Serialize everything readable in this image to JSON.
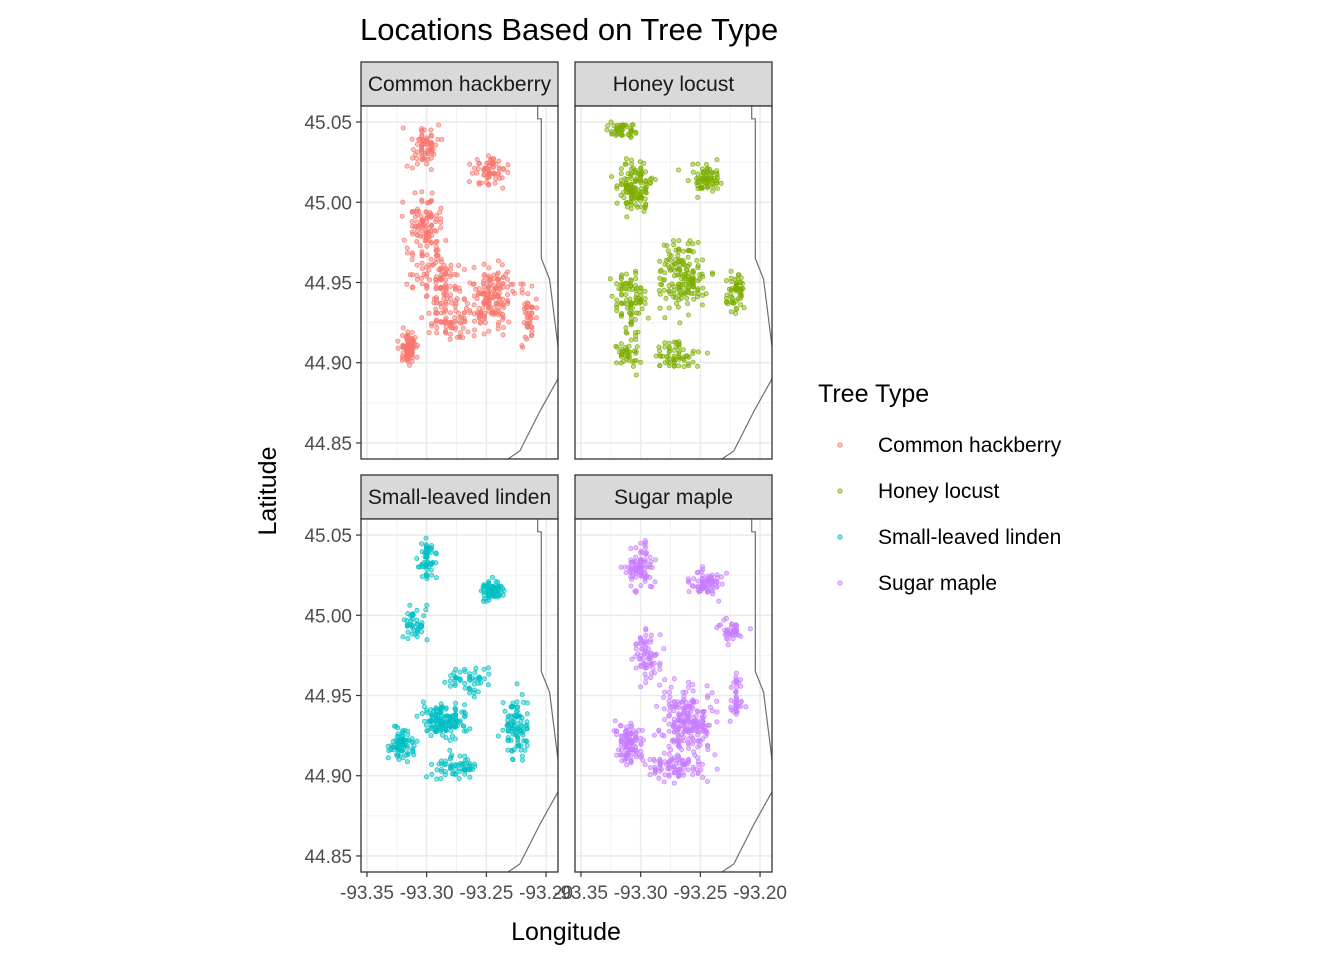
{
  "chart_data": {
    "type": "scatter",
    "title": "Locations Based on Tree Type",
    "xlabel": "Longitude",
    "ylabel": "Latitude",
    "xlim": [
      -93.355,
      -93.19
    ],
    "ylim": [
      44.84,
      45.06
    ],
    "x_ticks": [
      -93.35,
      -93.3,
      -93.25,
      -93.2
    ],
    "x_tick_labels": [
      "-93.35",
      "-93.30",
      "-93.25",
      "-93.20"
    ],
    "y_ticks": [
      44.85,
      44.9,
      44.95,
      45.0,
      45.05
    ],
    "y_tick_labels": [
      "44.85",
      "44.90",
      "44.95",
      "45.00",
      "45.05"
    ],
    "grid": true,
    "legend": {
      "title": "Tree Type",
      "placement": "right",
      "entries": [
        "Common hackberry",
        "Honey locust",
        "Small-leaved linden",
        "Sugar maple"
      ]
    },
    "boundary_outline": {
      "east_edge": [
        [
          -93.207,
          45.06
        ],
        [
          -93.207,
          45.052
        ],
        [
          -93.204,
          45.052
        ],
        [
          -93.204,
          44.965
        ],
        [
          -93.197,
          44.952
        ],
        [
          -93.19,
          44.91
        ]
      ],
      "southeast_edge": [
        [
          -93.19,
          44.89
        ],
        [
          -93.205,
          44.87
        ],
        [
          -93.222,
          44.845
        ],
        [
          -93.232,
          44.84
        ]
      ]
    },
    "series": [
      {
        "name": "Common hackberry",
        "color": "#F8766D",
        "clusters": [
          {
            "cx": -93.302,
            "cy": 45.035,
            "sx": 0.012,
            "sy": 0.013,
            "n": 70
          },
          {
            "cx": -93.302,
            "cy": 44.985,
            "sx": 0.015,
            "sy": 0.02,
            "n": 110
          },
          {
            "cx": -93.245,
            "cy": 45.02,
            "sx": 0.015,
            "sy": 0.01,
            "n": 65
          },
          {
            "cx": -93.29,
            "cy": 44.95,
            "sx": 0.02,
            "sy": 0.02,
            "n": 110
          },
          {
            "cx": -93.245,
            "cy": 44.94,
            "sx": 0.018,
            "sy": 0.02,
            "n": 150
          },
          {
            "cx": -93.315,
            "cy": 44.91,
            "sx": 0.008,
            "sy": 0.01,
            "n": 80
          },
          {
            "cx": -93.28,
            "cy": 44.925,
            "sx": 0.02,
            "sy": 0.012,
            "n": 70
          },
          {
            "cx": -93.215,
            "cy": 44.93,
            "sx": 0.006,
            "sy": 0.02,
            "n": 45
          }
        ]
      },
      {
        "name": "Honey locust",
        "color": "#7CAE00",
        "clusters": [
          {
            "cx": -93.315,
            "cy": 45.045,
            "sx": 0.012,
            "sy": 0.004,
            "n": 45
          },
          {
            "cx": -93.305,
            "cy": 45.01,
            "sx": 0.014,
            "sy": 0.015,
            "n": 130
          },
          {
            "cx": -93.245,
            "cy": 45.015,
            "sx": 0.015,
            "sy": 0.01,
            "n": 70
          },
          {
            "cx": -93.265,
            "cy": 44.955,
            "sx": 0.02,
            "sy": 0.02,
            "n": 160
          },
          {
            "cx": -93.31,
            "cy": 44.94,
            "sx": 0.014,
            "sy": 0.02,
            "n": 90
          },
          {
            "cx": -93.22,
            "cy": 44.945,
            "sx": 0.008,
            "sy": 0.012,
            "n": 60
          },
          {
            "cx": -93.27,
            "cy": 44.905,
            "sx": 0.02,
            "sy": 0.01,
            "n": 60
          },
          {
            "cx": -93.31,
            "cy": 44.905,
            "sx": 0.01,
            "sy": 0.012,
            "n": 40
          }
        ]
      },
      {
        "name": "Small-leaved linden",
        "color": "#00BFC4",
        "clusters": [
          {
            "cx": -93.3,
            "cy": 45.035,
            "sx": 0.008,
            "sy": 0.012,
            "n": 55
          },
          {
            "cx": -93.245,
            "cy": 45.015,
            "sx": 0.008,
            "sy": 0.006,
            "n": 80
          },
          {
            "cx": -93.31,
            "cy": 44.995,
            "sx": 0.01,
            "sy": 0.01,
            "n": 45
          },
          {
            "cx": -93.285,
            "cy": 44.935,
            "sx": 0.018,
            "sy": 0.01,
            "n": 150
          },
          {
            "cx": -93.32,
            "cy": 44.92,
            "sx": 0.01,
            "sy": 0.01,
            "n": 80
          },
          {
            "cx": -93.225,
            "cy": 44.93,
            "sx": 0.01,
            "sy": 0.02,
            "n": 100
          },
          {
            "cx": -93.275,
            "cy": 44.905,
            "sx": 0.02,
            "sy": 0.008,
            "n": 60
          },
          {
            "cx": -93.265,
            "cy": 44.96,
            "sx": 0.02,
            "sy": 0.01,
            "n": 50
          }
        ]
      },
      {
        "name": "Sugar maple",
        "color": "#C77CFF",
        "clusters": [
          {
            "cx": -93.3,
            "cy": 45.03,
            "sx": 0.012,
            "sy": 0.014,
            "n": 90
          },
          {
            "cx": -93.245,
            "cy": 45.02,
            "sx": 0.014,
            "sy": 0.008,
            "n": 75
          },
          {
            "cx": -93.225,
            "cy": 44.99,
            "sx": 0.01,
            "sy": 0.006,
            "n": 40
          },
          {
            "cx": -93.295,
            "cy": 44.975,
            "sx": 0.012,
            "sy": 0.015,
            "n": 70
          },
          {
            "cx": -93.26,
            "cy": 44.935,
            "sx": 0.022,
            "sy": 0.02,
            "n": 220
          },
          {
            "cx": -93.31,
            "cy": 44.92,
            "sx": 0.012,
            "sy": 0.015,
            "n": 110
          },
          {
            "cx": -93.27,
            "cy": 44.905,
            "sx": 0.025,
            "sy": 0.008,
            "n": 90
          },
          {
            "cx": -93.22,
            "cy": 44.95,
            "sx": 0.006,
            "sy": 0.015,
            "n": 40
          }
        ]
      }
    ]
  }
}
